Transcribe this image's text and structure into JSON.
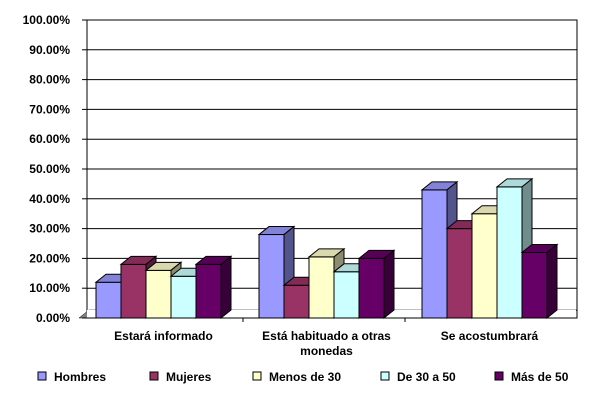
{
  "chart_data": {
    "type": "bar",
    "three_d": true,
    "categories": [
      "Estará informado",
      "Está habituado a otras monedas",
      "Se acostumbrará"
    ],
    "category_label_lines": [
      [
        "Estará informado"
      ],
      [
        "Está habituado a otras",
        "monedas"
      ],
      [
        "Se acostumbrará"
      ]
    ],
    "y_ticks": [
      "0.00%",
      "10.00%",
      "20.00%",
      "30.00%",
      "40.00%",
      "50.00%",
      "60.00%",
      "70.00%",
      "80.00%",
      "90.00%",
      "100.00%"
    ],
    "ylim": [
      0,
      1
    ],
    "grid": true,
    "legend_position": "bottom",
    "series": [
      {
        "name": "Hombres",
        "color": "#9999FF",
        "values": [
          0.12,
          0.28,
          0.43
        ]
      },
      {
        "name": "Mujeres",
        "color": "#993366",
        "values": [
          0.18,
          0.11,
          0.3
        ]
      },
      {
        "name": "Menos de 30",
        "color": "#FFFFCC",
        "values": [
          0.16,
          0.205,
          0.35
        ]
      },
      {
        "name": "De 30 a 50",
        "color": "#CCFFFF",
        "values": [
          0.14,
          0.155,
          0.44
        ]
      },
      {
        "name": "Más de 50",
        "color": "#660066",
        "values": [
          0.18,
          0.2,
          0.22
        ]
      }
    ]
  }
}
